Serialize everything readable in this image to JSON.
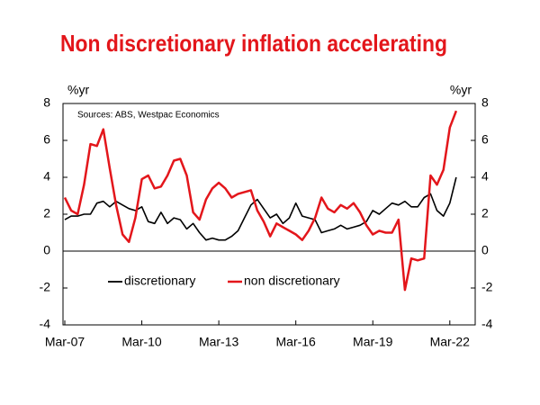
{
  "chart_data": {
    "type": "line",
    "title": "Non discretionary inflation accelerating",
    "y_label": "%yr",
    "y2_label": "%yr",
    "annotation": "Sources: ABS, Westpac Economics",
    "categories": [
      "Mar-07",
      null,
      null,
      null,
      null,
      null,
      null,
      null,
      null,
      null,
      null,
      null,
      "Mar-10",
      null,
      null,
      null,
      null,
      null,
      null,
      null,
      null,
      null,
      null,
      null,
      "Mar-13",
      null,
      null,
      null,
      null,
      null,
      null,
      null,
      null,
      null,
      null,
      null,
      "Mar-16",
      null,
      null,
      null,
      null,
      null,
      null,
      null,
      null,
      null,
      null,
      null,
      "Mar-19",
      null,
      null,
      null,
      null,
      null,
      null,
      null,
      null,
      null,
      null,
      null,
      "Mar-22",
      null
    ],
    "series": [
      {
        "name": "discretionary",
        "color": "#000000",
        "values": [
          1.7,
          1.9,
          1.9,
          2.0,
          2.0,
          2.6,
          2.7,
          2.4,
          2.7,
          2.5,
          2.3,
          2.2,
          2.4,
          1.6,
          1.5,
          2.1,
          1.5,
          1.8,
          1.7,
          1.2,
          1.5,
          1.0,
          0.6,
          0.7,
          0.6,
          0.6,
          0.8,
          1.1,
          1.8,
          2.5,
          2.8,
          2.3,
          1.8,
          2.0,
          1.5,
          1.8,
          2.6,
          1.9,
          1.8,
          1.7,
          1.0,
          1.1,
          1.2,
          1.4,
          1.2,
          1.3,
          1.4,
          1.6,
          2.2,
          2.0,
          2.3,
          2.6,
          2.5,
          2.7,
          2.4,
          2.4,
          2.9,
          3.1,
          2.2,
          1.9,
          2.6,
          4.0
        ]
      },
      {
        "name": "non discretionary",
        "color": "#e3161b",
        "values": [
          2.9,
          2.2,
          2.0,
          3.6,
          5.8,
          5.7,
          6.6,
          4.5,
          2.5,
          0.9,
          0.5,
          1.8,
          3.9,
          4.1,
          3.4,
          3.5,
          4.1,
          4.9,
          5.0,
          4.1,
          2.1,
          1.7,
          2.8,
          3.4,
          3.7,
          3.4,
          2.9,
          3.1,
          3.2,
          3.3,
          2.2,
          1.6,
          0.8,
          1.5,
          1.3,
          1.1,
          0.9,
          0.6,
          1.1,
          1.8,
          2.9,
          2.3,
          2.1,
          2.5,
          2.3,
          2.6,
          2.1,
          1.4,
          0.9,
          1.1,
          1.0,
          1.0,
          1.7,
          -2.1,
          -0.4,
          -0.5,
          -0.4,
          4.1,
          3.6,
          4.4,
          6.7,
          7.6
        ]
      }
    ],
    "ylim": [
      -4,
      8
    ],
    "yticks": [
      -4,
      -2,
      0,
      2,
      4,
      6,
      8
    ],
    "y2lim": [
      -4,
      8
    ],
    "y2ticks": [
      -4,
      -2,
      0,
      2,
      4,
      6,
      8
    ]
  }
}
